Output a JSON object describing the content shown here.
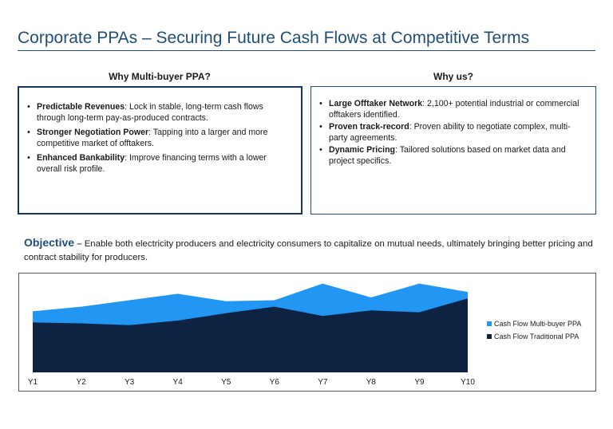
{
  "header": {
    "title": "Corporate PPAs – Securing Future Cash Flows at Competitive Terms"
  },
  "left_panel": {
    "heading": "Why Multi-buyer PPA?",
    "items": [
      {
        "bold": "Predictable Revenues",
        "text": ": Lock in stable, long-term cash flows through long-term pay-as-produced contracts."
      },
      {
        "bold": "Stronger Negotiation Power",
        "text": ": Tapping into a larger and more competitive market of offtakers."
      },
      {
        "bold": "Enhanced Bankability",
        "text": ": Improve financing terms with a lower overall risk profile."
      }
    ]
  },
  "right_panel": {
    "heading": "Why us?",
    "items": [
      {
        "bold": "Large Offtaker Network",
        "text": ": 2,100+ potential industrial or commercial offtakers identified."
      },
      {
        "bold": "Proven track-record",
        "text": ": Proven ability to negotiate complex, multi-party agreements."
      },
      {
        "bold": "Dynamic Pricing",
        "text": ": Tailored solutions based on market data and project specifics."
      }
    ]
  },
  "objective": {
    "label": "Objective",
    "dash": " – ",
    "text": "Enable both electricity producers and electricity consumers to capitalize on mutual needs, ultimately bringing better pricing and contract stability for producers."
  },
  "colors": {
    "accent": "#1f4e79",
    "multi_buyer": "#2196f3",
    "traditional": "#0d2341"
  },
  "chart_data": {
    "type": "area",
    "stacked": false,
    "categories": [
      "Y1",
      "Y2",
      "Y3",
      "Y4",
      "Y5",
      "Y6",
      "Y7",
      "Y8",
      "Y9",
      "Y10"
    ],
    "series": [
      {
        "name": "Cash Flow Multi-buyer PPA",
        "values": [
          0.66,
          0.71,
          0.78,
          0.85,
          0.77,
          0.78,
          0.96,
          0.81,
          0.96,
          0.87
        ]
      },
      {
        "name": "Cash Flow Traditional PPA",
        "values": [
          0.54,
          0.53,
          0.51,
          0.56,
          0.64,
          0.71,
          0.61,
          0.67,
          0.65,
          0.8
        ]
      }
    ],
    "ylim": [
      0,
      1
    ],
    "grid": false,
    "y_axis_labels": false,
    "legend_position": "right"
  }
}
